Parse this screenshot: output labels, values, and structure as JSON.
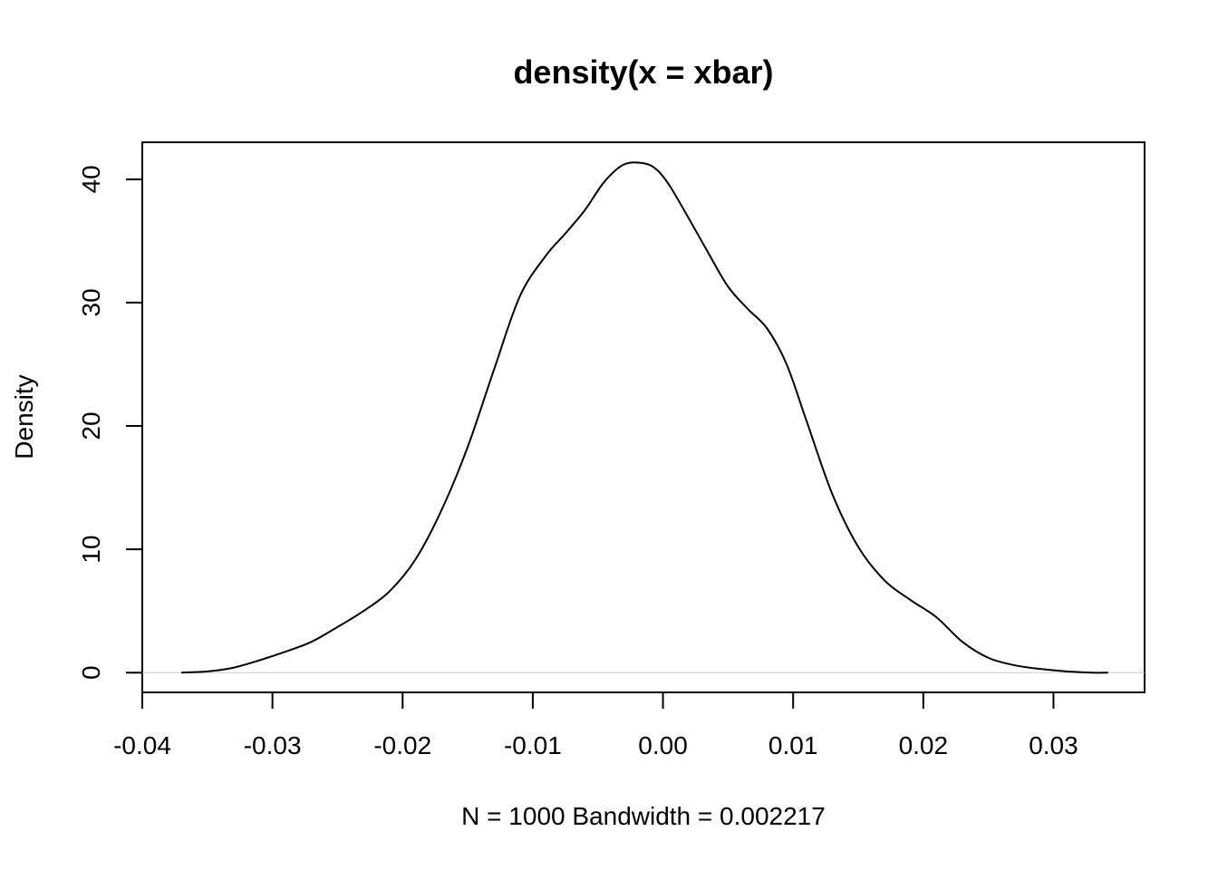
{
  "chart_data": {
    "type": "line",
    "title": "density(x = xbar)",
    "xlabel": "N = 1000   Bandwidth = 0.002217",
    "ylabel": "Density",
    "xlim": [
      -0.04,
      0.037
    ],
    "ylim": [
      -1.6,
      43
    ],
    "x_ticks": [
      -0.04,
      -0.03,
      -0.02,
      -0.01,
      0.0,
      0.01,
      0.02,
      0.03
    ],
    "x_tick_labels": [
      "-0.04",
      "-0.03",
      "-0.02",
      "-0.01",
      "0.00",
      "0.01",
      "0.02",
      "0.03"
    ],
    "y_ticks": [
      0,
      10,
      20,
      30,
      40
    ],
    "y_tick_labels": [
      "0",
      "10",
      "20",
      "30",
      "40"
    ],
    "baseline": 0,
    "grid": false,
    "series": [
      {
        "x": [
          -0.037,
          -0.035,
          -0.033,
          -0.031,
          -0.029,
          -0.027,
          -0.025,
          -0.023,
          -0.021,
          -0.019,
          -0.017,
          -0.015,
          -0.013,
          -0.011,
          -0.009,
          -0.0075,
          -0.006,
          -0.0045,
          -0.003,
          -0.0015,
          -0.0005,
          0.0005,
          0.002,
          0.0035,
          0.005,
          0.0065,
          0.008,
          0.0095,
          0.011,
          0.013,
          0.015,
          0.017,
          0.019,
          0.021,
          0.023,
          0.025,
          0.027,
          0.029,
          0.031,
          0.033,
          0.0342
        ],
        "y": [
          0.0,
          0.1,
          0.4,
          1.0,
          1.7,
          2.5,
          3.7,
          5.0,
          6.6,
          9.2,
          13.2,
          18.3,
          24.5,
          30.5,
          33.8,
          35.6,
          37.5,
          39.8,
          41.2,
          41.3,
          40.8,
          39.5,
          36.8,
          34.0,
          31.3,
          29.5,
          27.9,
          25.0,
          20.5,
          14.5,
          10.2,
          7.5,
          5.9,
          4.5,
          2.5,
          1.2,
          0.6,
          0.3,
          0.1,
          0.0,
          0.0
        ]
      }
    ]
  }
}
